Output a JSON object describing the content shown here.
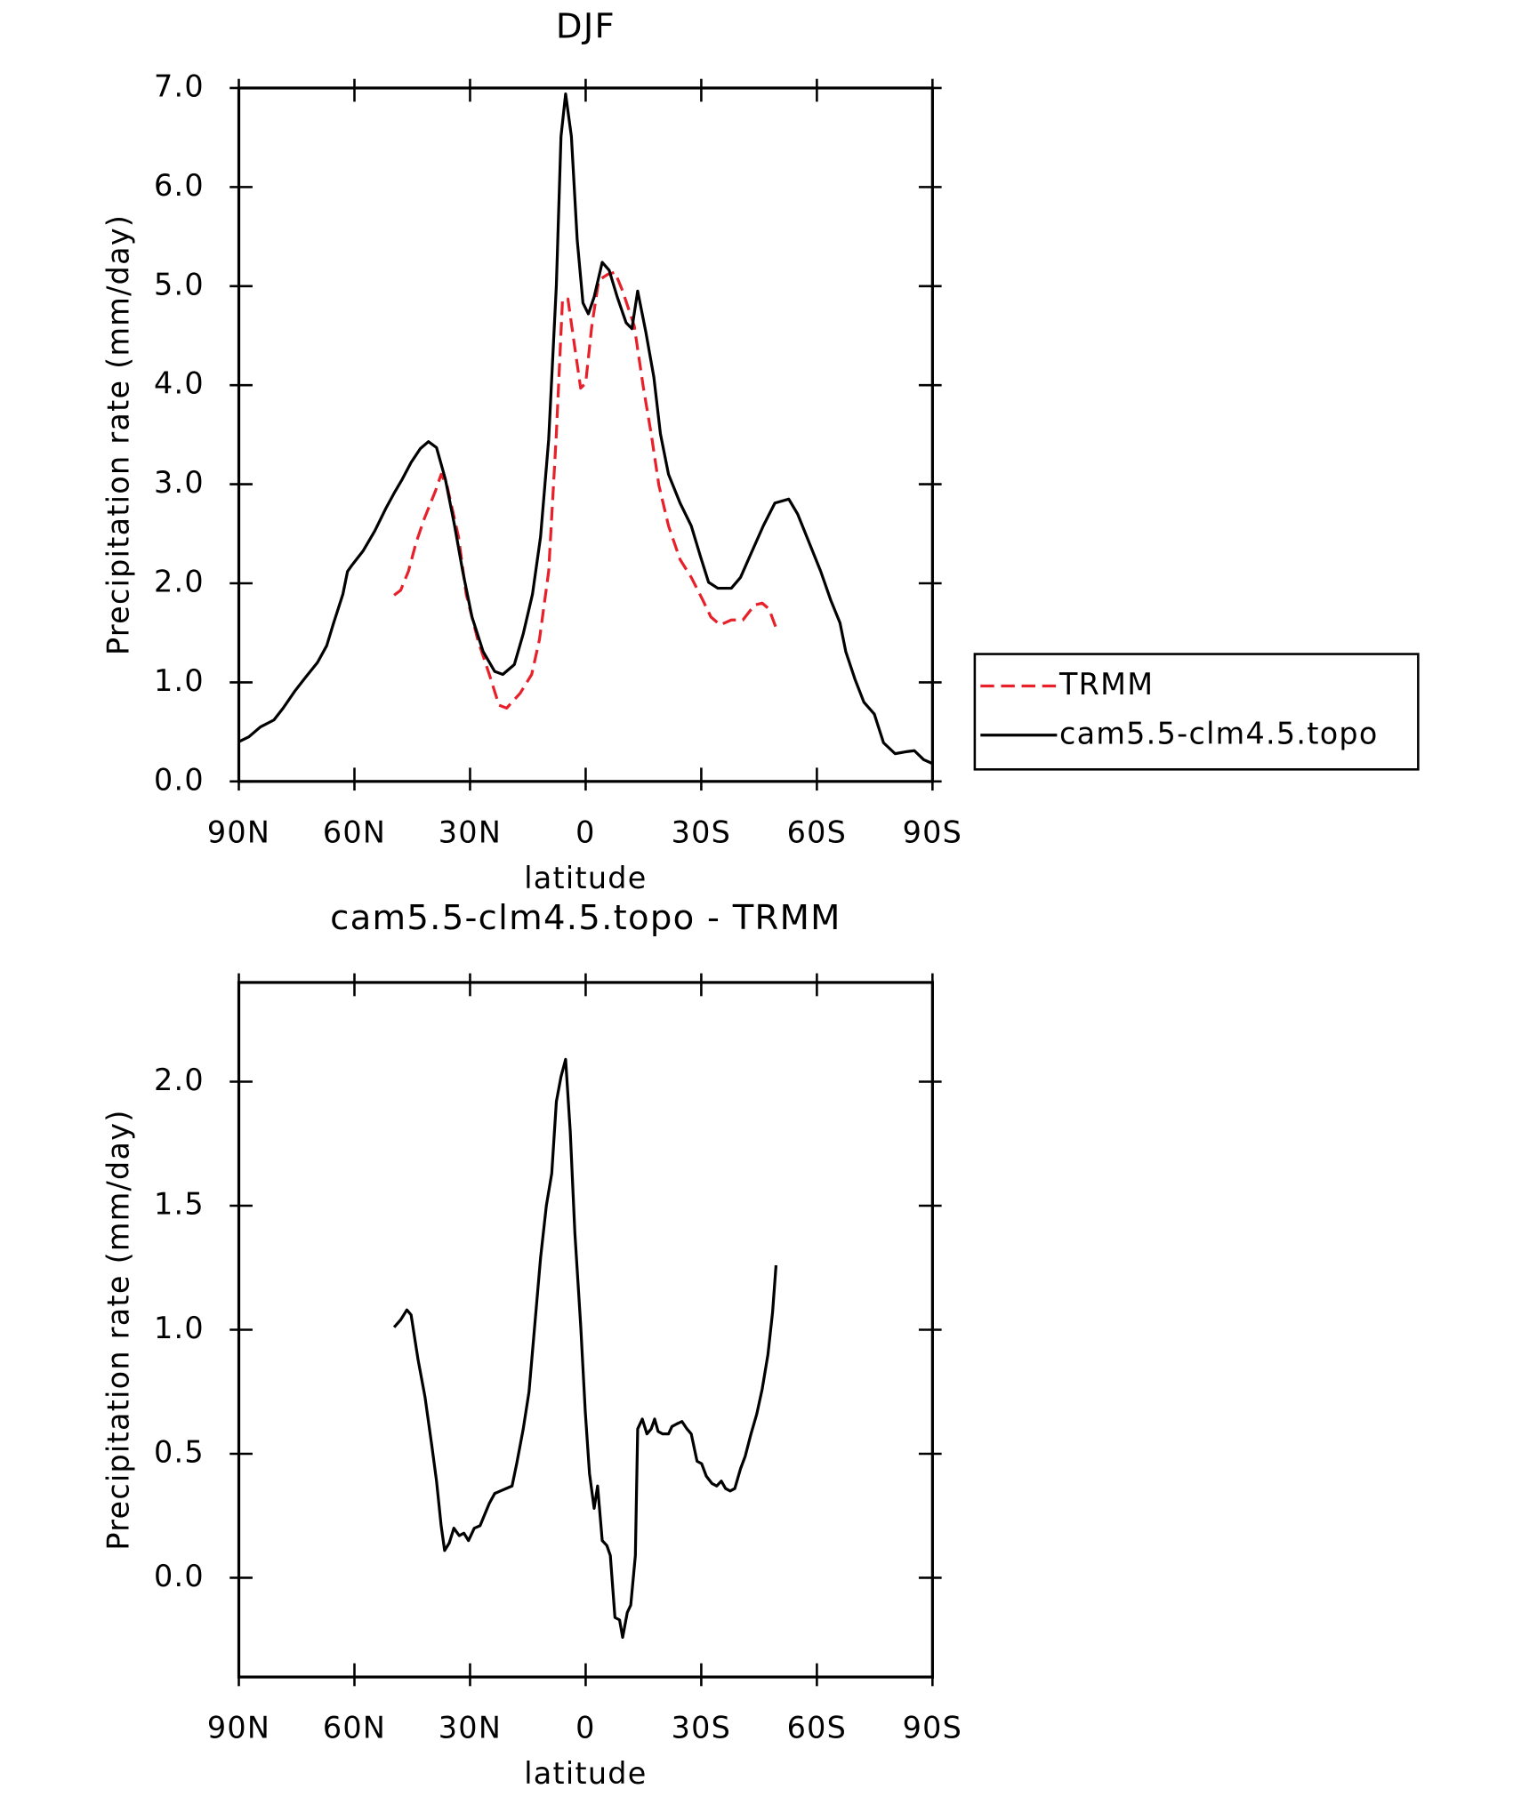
{
  "chart_data": [
    {
      "type": "line",
      "title": "DJF",
      "x_label": "latitude",
      "y_label": "Precipitation rate (mm/day)",
      "xlim": [
        90,
        -90
      ],
      "xticks": [
        {
          "value": 90,
          "label": "90N"
        },
        {
          "value": 60,
          "label": "60N"
        },
        {
          "value": 30,
          "label": "30N"
        },
        0,
        {
          "value": -30,
          "label": "30S"
        },
        {
          "value": -60,
          "label": "60S"
        },
        {
          "value": -90,
          "label": "90S"
        }
      ],
      "ylim": [
        0,
        7
      ],
      "yticks": [
        {
          "value": 0,
          "label": "0.0"
        },
        {
          "value": 1,
          "label": "1.0"
        },
        {
          "value": 2,
          "label": "2.0"
        },
        {
          "value": 3,
          "label": "3.0"
        },
        {
          "value": 4,
          "label": "4.0"
        },
        {
          "value": 5,
          "label": "5.0"
        },
        {
          "value": 6,
          "label": "6.0"
        },
        {
          "value": 7,
          "label": "7.0"
        }
      ],
      "legend": "right",
      "series": [
        {
          "name": "TRMM",
          "color": "#e8202a",
          "line_style": "dashed",
          "x": [
            49.7,
            48,
            46,
            44,
            42,
            39,
            37.5,
            36,
            33,
            31,
            28,
            25,
            22.5,
            20.5,
            17,
            14,
            12,
            9.6,
            7.6,
            6,
            4.6,
            3,
            1.3,
            0,
            -1.6,
            -3.4,
            -5.8,
            -7.6,
            -9.6,
            -12.6,
            -15,
            -17,
            -19,
            -21.5,
            -24.5,
            -27.4,
            -30.4,
            -32.5,
            -34.9,
            -37.8,
            -40.8,
            -43.8,
            -45.8,
            -47.6,
            -49.4
          ],
          "values": [
            1.88,
            1.93,
            2.12,
            2.41,
            2.64,
            2.93,
            3.1,
            2.99,
            2.47,
            1.89,
            1.43,
            1.08,
            0.77,
            0.74,
            0.89,
            1.08,
            1.43,
            2.12,
            3.51,
            4.87,
            4.87,
            4.43,
            3.97,
            4.02,
            4.6,
            5.06,
            5.12,
            5.14,
            4.95,
            4.6,
            3.97,
            3.51,
            2.99,
            2.58,
            2.24,
            2.06,
            1.83,
            1.66,
            1.58,
            1.63,
            1.63,
            1.78,
            1.8,
            1.74,
            1.55
          ]
        },
        {
          "name": "cam5.5-clm4.5.topo",
          "color": "#000000",
          "line_style": "solid",
          "x": [
            90,
            87.4,
            84.4,
            80.9,
            78.5,
            75.5,
            72.5,
            69.6,
            67.2,
            65.4,
            63,
            61.8,
            60.7,
            57.7,
            54.7,
            51.8,
            49.7,
            47.6,
            45.3,
            42.9,
            40.8,
            38.7,
            36.4,
            34,
            31.9,
            29.5,
            26.6,
            23.6,
            21.5,
            18.5,
            16.2,
            13.8,
            11.7,
            9.6,
            7.6,
            6.4,
            5.2,
            3.7,
            2.2,
            0.7,
            -0.7,
            -2.2,
            -4.3,
            -6.1,
            -8.2,
            -10.5,
            -12,
            -13.5,
            -15.6,
            -17.7,
            -19.4,
            -21.5,
            -24.5,
            -27.4,
            -29.8,
            -31.9,
            -34.3,
            -37.8,
            -40.2,
            -42.9,
            -46.1,
            -49.1,
            -52.7,
            -55,
            -58,
            -61,
            -63.6,
            -66,
            -67.5,
            -69.9,
            -72.2,
            -74.9,
            -77.3,
            -80.3,
            -83.2,
            -85.3,
            -87.7,
            -90
          ],
          "values": [
            0.4,
            0.45,
            0.55,
            0.62,
            0.74,
            0.91,
            1.06,
            1.2,
            1.37,
            1.6,
            1.89,
            2.12,
            2.18,
            2.33,
            2.53,
            2.76,
            2.91,
            3.05,
            3.22,
            3.36,
            3.43,
            3.37,
            3.05,
            2.58,
            2.12,
            1.66,
            1.31,
            1.11,
            1.08,
            1.18,
            1.49,
            1.89,
            2.47,
            3.45,
            5.01,
            6.51,
            6.94,
            6.51,
            5.47,
            4.83,
            4.72,
            4.89,
            5.24,
            5.16,
            4.89,
            4.63,
            4.57,
            4.95,
            4.54,
            4.08,
            3.51,
            3.1,
            2.81,
            2.58,
            2.27,
            2.01,
            1.95,
            1.95,
            2.06,
            2.3,
            2.58,
            2.81,
            2.85,
            2.7,
            2.41,
            2.12,
            1.83,
            1.6,
            1.31,
            1.03,
            0.8,
            0.68,
            0.39,
            0.28,
            0.3,
            0.31,
            0.22,
            0.18
          ]
        }
      ]
    },
    {
      "type": "line",
      "title": "cam5.5-clm4.5.topo - TRMM",
      "x_label": "latitude",
      "y_label": "Precipitation rate (mm/day)",
      "xlim": [
        90,
        -90
      ],
      "xticks": [
        {
          "value": 90,
          "label": "90N"
        },
        {
          "value": 60,
          "label": "60N"
        },
        {
          "value": 30,
          "label": "30N"
        },
        0,
        {
          "value": -30,
          "label": "30S"
        },
        {
          "value": -60,
          "label": "60S"
        },
        {
          "value": -90,
          "label": "90S"
        }
      ],
      "ylim": [
        -0.4,
        2.4
      ],
      "yticks": [
        {
          "value": 0,
          "label": "0.0"
        },
        0.5,
        {
          "value": 1,
          "label": "1.0"
        },
        1.5,
        {
          "value": 2,
          "label": "2.0"
        }
      ],
      "series": [
        {
          "color": "#000000",
          "line_style": "solid",
          "x": [
            49.7,
            48,
            46.4,
            45.3,
            43.5,
            41.7,
            39.9,
            38.7,
            37.5,
            36.6,
            35.4,
            34.2,
            32.8,
            31.6,
            30.4,
            28.9,
            27.4,
            25,
            23.6,
            22.1,
            20.6,
            19.1,
            17.9,
            16.2,
            14.7,
            13.2,
            11.7,
            10.2,
            8.8,
            7.6,
            6.4,
            5.2,
            4,
            2.8,
            1.3,
            0.1,
            -1,
            -2.2,
            -3.1,
            -4.3,
            -5.5,
            -6.4,
            -7.6,
            -8.8,
            -9.6,
            -10.8,
            -11.7,
            -12.9,
            -13.5,
            -14.7,
            -15.9,
            -17,
            -17.9,
            -18.8,
            -20,
            -21.5,
            -22.4,
            -23.6,
            -25,
            -26.3,
            -27.4,
            -28.9,
            -30.1,
            -31.3,
            -32.8,
            -34,
            -35.2,
            -36.3,
            -37.5,
            -38.7,
            -40.2,
            -41.4,
            -42.9,
            -44.4,
            -45.8,
            -47.3,
            -48.5,
            -49.4
          ],
          "values": [
            1.01,
            1.04,
            1.08,
            1.06,
            0.88,
            0.73,
            0.53,
            0.39,
            0.21,
            0.11,
            0.14,
            0.2,
            0.17,
            0.18,
            0.15,
            0.2,
            0.21,
            0.3,
            0.34,
            0.35,
            0.36,
            0.37,
            0.46,
            0.6,
            0.75,
            1.02,
            1.29,
            1.5,
            1.63,
            1.92,
            2.02,
            2.09,
            1.8,
            1.39,
            1.02,
            0.67,
            0.42,
            0.28,
            0.37,
            0.15,
            0.13,
            0.09,
            -0.16,
            -0.17,
            -0.24,
            -0.14,
            -0.11,
            0.09,
            0.6,
            0.64,
            0.58,
            0.6,
            0.64,
            0.59,
            0.58,
            0.58,
            0.61,
            0.62,
            0.63,
            0.6,
            0.58,
            0.47,
            0.46,
            0.41,
            0.38,
            0.37,
            0.39,
            0.36,
            0.35,
            0.36,
            0.44,
            0.49,
            0.58,
            0.66,
            0.76,
            0.9,
            1.07,
            1.26
          ]
        }
      ]
    }
  ]
}
